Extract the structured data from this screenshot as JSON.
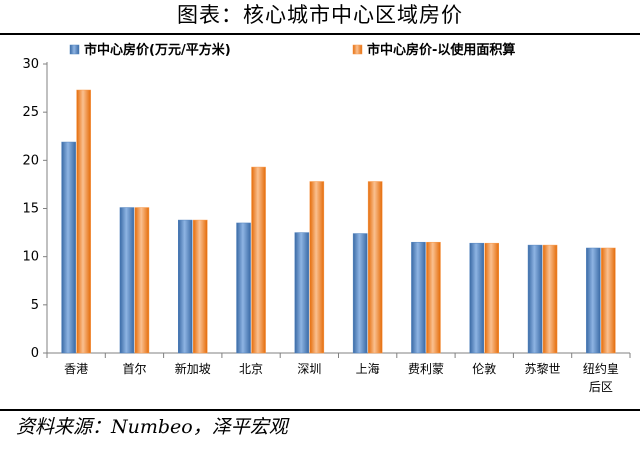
{
  "title": "图表：核心城市中心区域房价",
  "source": "资料来源：Numbeo，泽平宏观",
  "colors": {
    "series1": "#4f81bd",
    "series2": "#f79646"
  },
  "chart_data": {
    "type": "bar",
    "categories": [
      "香港",
      "首尔",
      "新加坡",
      "北京",
      "深圳",
      "上海",
      "费利蒙",
      "伦敦",
      "苏黎世",
      "纽约皇后区"
    ],
    "category_lines": [
      [
        "香港"
      ],
      [
        "首尔"
      ],
      [
        "新加坡"
      ],
      [
        "北京"
      ],
      [
        "深圳"
      ],
      [
        "上海"
      ],
      [
        "费利蒙"
      ],
      [
        "伦敦"
      ],
      [
        "苏黎世"
      ],
      [
        "纽约皇",
        "后区"
      ]
    ],
    "series": [
      {
        "name": "市中心房价(万元/平方米)",
        "values": [
          21.9,
          15.1,
          13.8,
          13.5,
          12.5,
          12.4,
          11.5,
          11.4,
          11.2,
          10.9
        ]
      },
      {
        "name": "市中心房价-以使用面积算",
        "values": [
          27.3,
          15.1,
          13.8,
          19.3,
          17.8,
          17.8,
          11.5,
          11.4,
          11.2,
          10.9
        ]
      }
    ],
    "ylim": [
      0,
      30
    ],
    "yticks": [
      0,
      5,
      10,
      15,
      20,
      25,
      30
    ],
    "legend_position": "top",
    "grid": false
  }
}
